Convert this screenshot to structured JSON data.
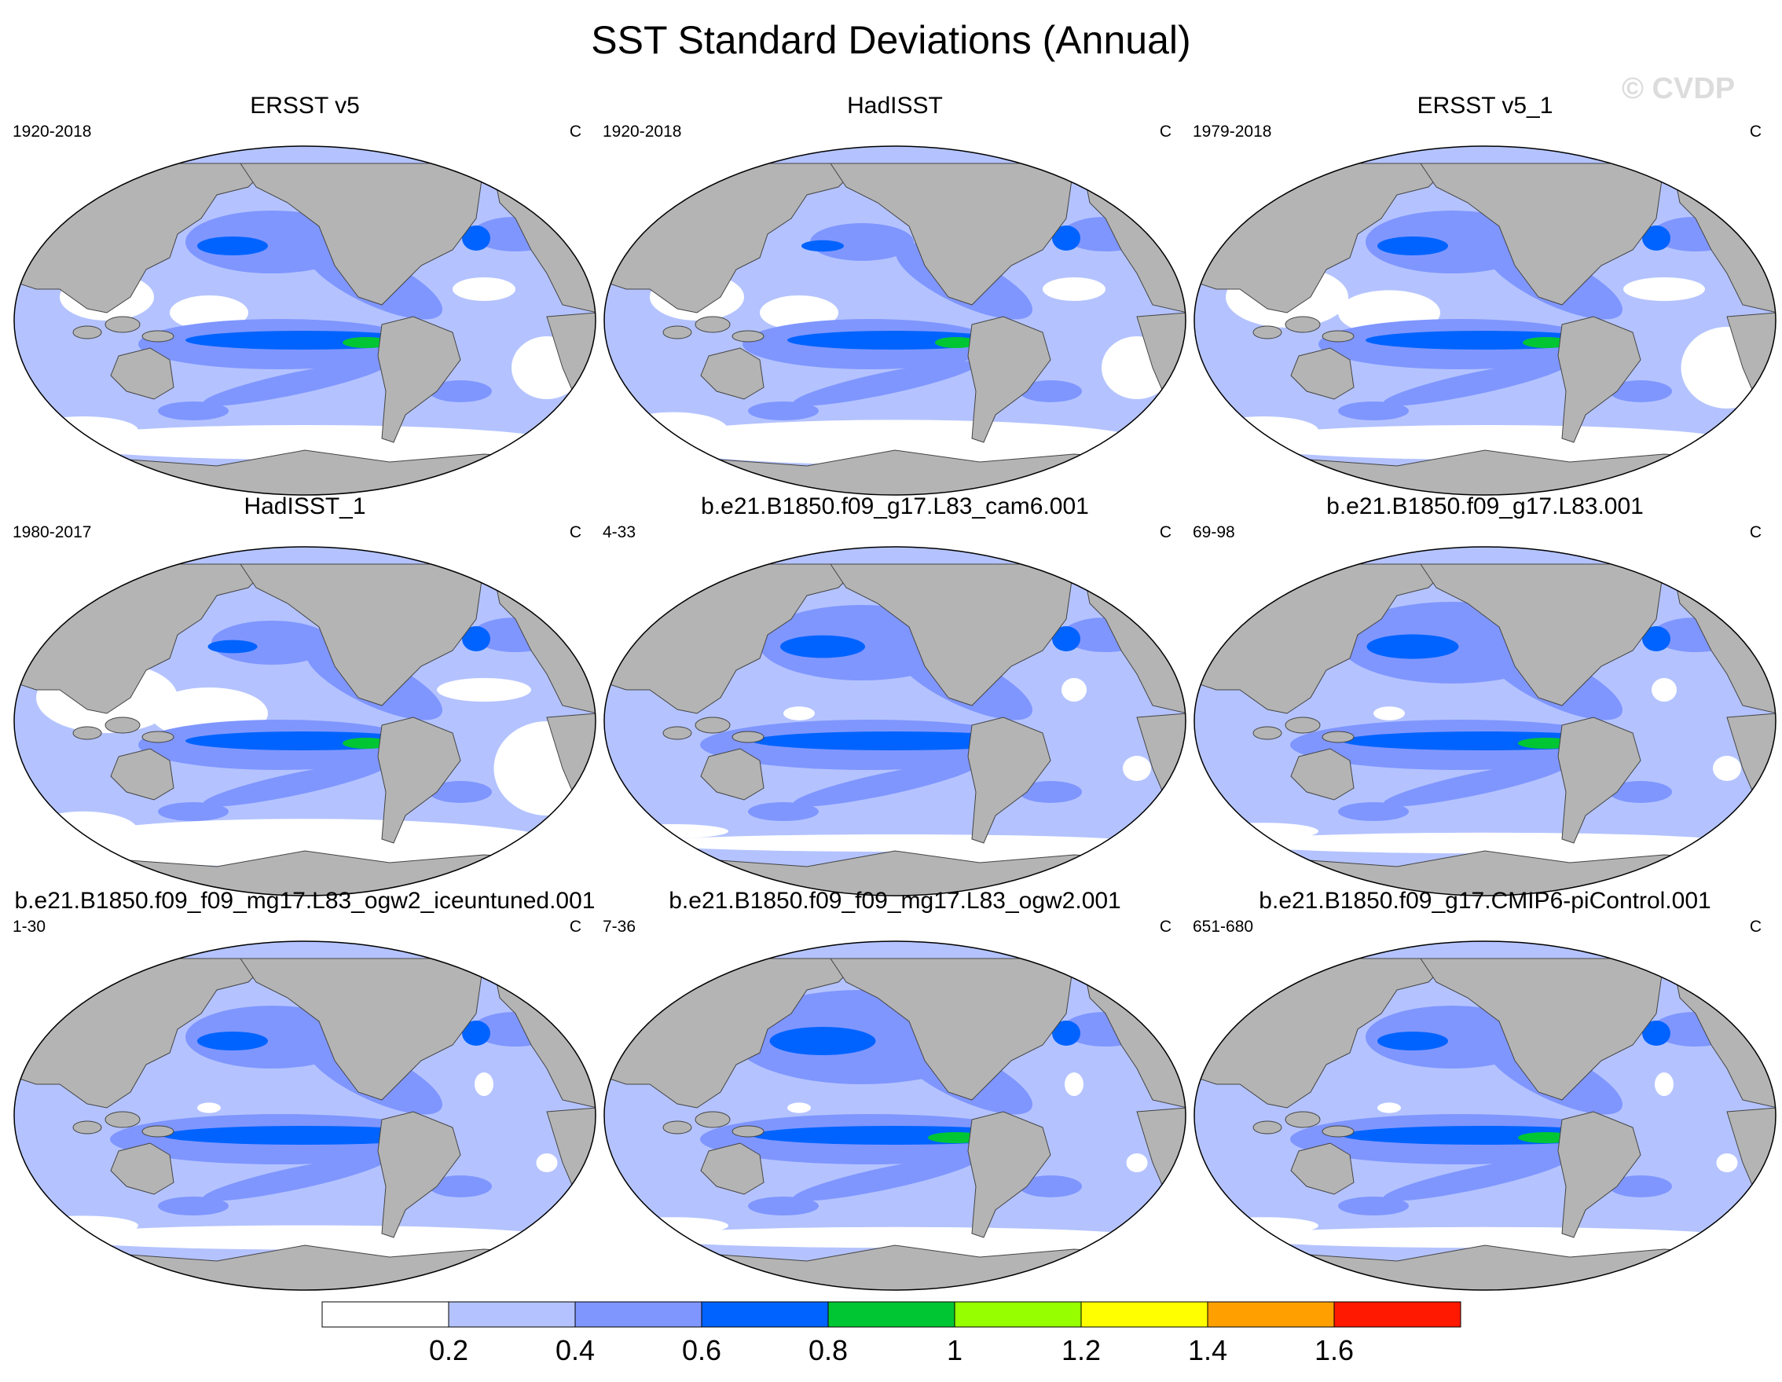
{
  "title": "SST Standard Deviations (Annual)",
  "watermark": "© CVDP",
  "units": "C",
  "panels": [
    {
      "title": "ERSST v5",
      "period": "1920-2018",
      "units": "C"
    },
    {
      "title": "HadISST",
      "period": "1920-2018",
      "units": "C"
    },
    {
      "title": "ERSST v5_1",
      "period": "1979-2018",
      "units": "C"
    },
    {
      "title": "HadISST_1",
      "period": "1980-2017",
      "units": "C"
    },
    {
      "title": "b.e21.B1850.f09_g17.L83_cam6.001",
      "period": "4-33",
      "units": "C"
    },
    {
      "title": "b.e21.B1850.f09_g17.L83.001",
      "period": "69-98",
      "units": "C"
    },
    {
      "title": "b.e21.B1850.f09_f09_mg17.L83_ogw2_iceuntuned.001",
      "period": "1-30",
      "units": "C"
    },
    {
      "title": "b.e21.B1850.f09_f09_mg17.L83_ogw2.001",
      "period": "7-36",
      "units": "C"
    },
    {
      "title": "b.e21.B1850.f09_g17.CMIP6-piControl.001",
      "period": "651-680",
      "units": "C"
    }
  ],
  "colorbar": {
    "colors": [
      "#ffffff",
      "#b4c3ff",
      "#7f96ff",
      "#0063ff",
      "#00c633",
      "#96ff00",
      "#ffff00",
      "#ffa000",
      "#ff1900"
    ],
    "labels": [
      "0.2",
      "0.4",
      "0.6",
      "0.8",
      "1",
      "1.2",
      "1.4",
      "1.6"
    ]
  },
  "colors": {
    "land": "#b4b4b4",
    "ocean_low": "#b4c3ff",
    "ocean_mid": "#7f96ff",
    "ocean_high": "#0063ff",
    "ocean_peak": "#00c633",
    "ocean_min": "#ffffff"
  }
}
